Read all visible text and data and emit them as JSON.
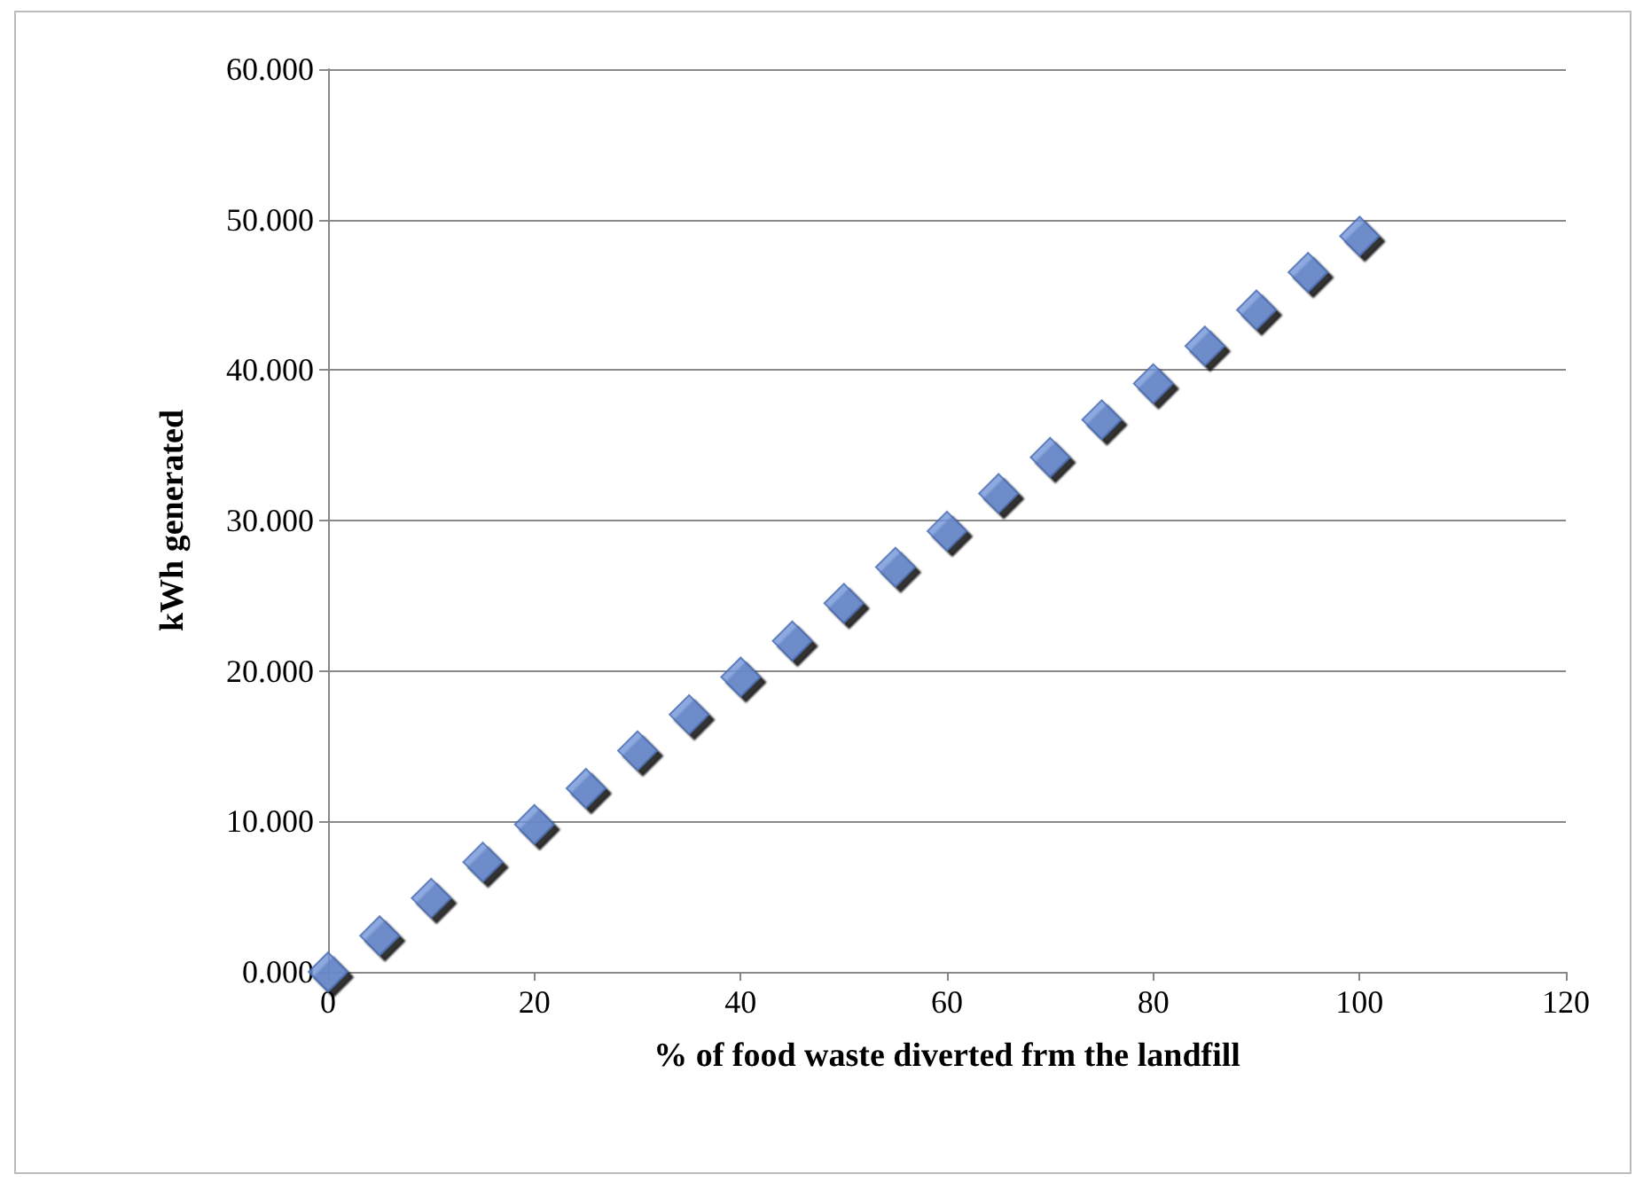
{
  "chart_data": {
    "type": "scatter",
    "xlabel": "% of food waste diverted frm the landfill",
    "ylabel": "kWh generated",
    "x": [
      0,
      5,
      10,
      15,
      20,
      25,
      30,
      35,
      40,
      45,
      50,
      55,
      60,
      65,
      70,
      75,
      80,
      85,
      90,
      95,
      100
    ],
    "series": [
      {
        "color": "#6f93d8",
        "values": [
          0,
          2.4,
          4.9,
          7.3,
          9.8,
          12.2,
          14.7,
          17.1,
          19.6,
          22.0,
          24.5,
          26.9,
          29.3,
          31.8,
          34.2,
          36.7,
          39.1,
          41.6,
          44.0,
          46.5,
          48.9
        ]
      }
    ],
    "xlim": [
      0,
      120
    ],
    "xticks": [
      0,
      20,
      40,
      60,
      80,
      100,
      120
    ],
    "ylim": [
      0,
      60
    ],
    "yticks": [
      {
        "value": 0,
        "label": "0.000"
      },
      {
        "value": 10,
        "label": "10.000"
      },
      {
        "value": 20,
        "label": "20.000"
      },
      {
        "value": 30,
        "label": "30.000"
      },
      {
        "value": 40,
        "label": "40.000"
      },
      {
        "value": 50,
        "label": "50.000"
      },
      {
        "value": 60,
        "label": "60.000"
      }
    ],
    "grid": "y",
    "marker": "diamond"
  }
}
